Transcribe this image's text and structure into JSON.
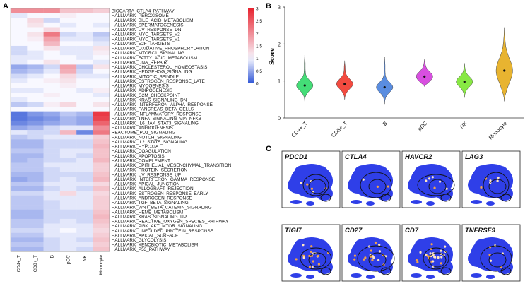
{
  "panels": {
    "a": "A",
    "b": "B",
    "c": "C"
  },
  "chart_data": [
    {
      "type": "heatmap",
      "title": "",
      "columns": [
        "CD4+_T",
        "CD8+_T",
        "B",
        "pDC",
        "NK",
        "Monocyte"
      ],
      "rows": [
        "BIOCARTA_CTLA4_PATHWAY",
        "HALLMARK_PEROXISOME",
        "HALLMARK_BILE_ACID_METABOLISM",
        "HALLMARK_SPERMATOGENESIS",
        "HALLMARK_UV_RESPONSE_DN",
        "HALLMARK_MYC_TARGETS_V2",
        "HALLMARK_MYC_TARGETS_V1",
        "HALLMARK_E2F_TARGETS",
        "HALLMARK_OXIDATIVE_PHOSPHORYLATION",
        "HALLMARK_MTORC1_SIGNALING",
        "HALLMARK_FATTY_ACID_METABOLISM",
        "HALLMARK_DNA_REPAIR",
        "HALLMARK_CHOLESTEROL_HOMEOSTASIS",
        "HALLMARK_HEDGEHOG_SIGNALING",
        "HALLMARK_MITOTIC_SPINDLE",
        "HALLMARK_ESTROGEN_RESPONSE_LATE",
        "HALLMARK_MYOGENESIS",
        "HALLMARK_ADIPOGENESIS",
        "HALLMARK_G2M_CHECKPOINT",
        "HALLMARK_KRAS_SIGNALING_DN",
        "HALLMARK_INTERFERON_ALPHA_RESPONSE",
        "HALLMARK_PANCREAS_BETA_CELLS",
        "HALLMARK_INFLAMMATORY_RESPONSE",
        "HALLMARK_TNFA_SIGNALING_VIA_NFKB",
        "HALLMARK_IL6_JAK_STAT3_SIGNALING",
        "HALLMARK_ANGIOGENESIS",
        "REACTOME_PD1_SIGNALING",
        "HALLMARK_NOTCH_SIGNALING",
        "HALLMARK_IL2_STAT5_SIGNALING",
        "HALLMARK_HYPOXIA",
        "HALLMARK_COAGULATION",
        "HALLMARK_APOPTOSIS",
        "HALLMARK_COMPLEMENT",
        "HALLMARK_EPITHELIAL_MESENCHYMAL_TRANSITION",
        "HALLMARK_PROTEIN_SECRETION",
        "HALLMARK_UV_RESPONSE_UP",
        "HALLMARK_INTERFERON_GAMMA_RESPONSE",
        "HALLMARK_APICAL_JUNCTION",
        "HALLMARK_ALLOGRAFT_REJECTION",
        "HALLMARK_ESTROGEN_RESPONSE_EARLY",
        "HALLMARK_ANDROGEN_RESPONSE",
        "HALLMARK_TGF_BETA_SIGNALING",
        "HALLMARK_WNT_BETA_CATENIN_SIGNALING",
        "HALLMARK_HEME_METABOLISM",
        "HALLMARK_KRAS_SIGNALING_UP",
        "HALLMARK_REACTIVE_OXYGEN_SPECIES_PATHWAY",
        "HALLMARK_PI3K_AKT_MTOR_SIGNALING",
        "HALLMARK_UNFOLDED_PROTEIN_RESPONSE",
        "HALLMARK_APICAL_SURFACE",
        "HALLMARK_GLYCOLYSIS",
        "HALLMARK_XENOBIOTIC_METABOLISM",
        "HALLMARK_P53_PATHWAY"
      ],
      "values": [
        [
          2.0,
          2.0,
          2.0,
          1.5,
          1.5,
          1.4
        ],
        [
          0.9,
          1.0,
          1.0,
          1.1,
          1.0,
          1.0
        ],
        [
          1.0,
          1.3,
          0.8,
          1.0,
          1.0,
          1.0
        ],
        [
          1.0,
          1.2,
          1.0,
          0.9,
          1.0,
          0.9
        ],
        [
          1.0,
          1.0,
          1.3,
          1.0,
          1.0,
          1.0
        ],
        [
          1.0,
          1.2,
          2.2,
          0.8,
          0.9,
          0.7
        ],
        [
          1.0,
          1.1,
          1.8,
          0.9,
          0.9,
          0.8
        ],
        [
          1.0,
          1.0,
          1.6,
          1.0,
          1.0,
          0.9
        ],
        [
          0.8,
          1.0,
          1.2,
          0.9,
          0.9,
          1.2
        ],
        [
          0.8,
          0.9,
          1.0,
          0.9,
          0.9,
          1.1
        ],
        [
          0.9,
          0.9,
          1.0,
          1.0,
          0.9,
          1.0
        ],
        [
          0.9,
          1.0,
          1.2,
          1.0,
          1.0,
          0.9
        ],
        [
          0.5,
          0.6,
          0.8,
          1.8,
          0.7,
          1.2
        ],
        [
          0.6,
          0.7,
          0.9,
          1.7,
          0.8,
          1.0
        ],
        [
          0.8,
          0.9,
          1.0,
          1.3,
          0.9,
          0.9
        ],
        [
          0.9,
          1.0,
          1.1,
          1.2,
          1.0,
          1.0
        ],
        [
          1.0,
          1.0,
          1.0,
          1.1,
          1.0,
          1.0
        ],
        [
          0.9,
          0.9,
          1.0,
          1.0,
          0.9,
          1.1
        ],
        [
          1.0,
          1.0,
          1.1,
          1.0,
          1.0,
          0.9
        ],
        [
          0.9,
          1.0,
          1.0,
          1.0,
          1.0,
          1.0
        ],
        [
          0.7,
          0.8,
          1.1,
          1.3,
          1.0,
          1.2
        ],
        [
          1.0,
          1.0,
          1.0,
          1.0,
          1.0,
          1.0
        ],
        [
          0.2,
          0.4,
          0.5,
          0.7,
          0.6,
          2.8
        ],
        [
          0.2,
          0.3,
          0.4,
          0.6,
          0.5,
          2.7
        ],
        [
          0.3,
          0.4,
          0.5,
          0.6,
          0.5,
          2.4
        ],
        [
          0.5,
          0.6,
          0.8,
          0.9,
          0.9,
          2.0
        ],
        [
          0.9,
          0.8,
          0.8,
          1.6,
          0.3,
          2.2
        ],
        [
          0.7,
          0.8,
          0.9,
          0.9,
          0.9,
          1.4
        ],
        [
          0.6,
          0.6,
          0.8,
          0.8,
          0.8,
          1.5
        ],
        [
          0.6,
          0.6,
          0.8,
          0.8,
          0.8,
          1.6
        ],
        [
          0.7,
          0.7,
          0.8,
          0.9,
          0.9,
          1.5
        ],
        [
          0.6,
          0.6,
          0.8,
          0.9,
          0.8,
          1.5
        ],
        [
          0.6,
          0.7,
          0.8,
          0.8,
          0.9,
          1.6
        ],
        [
          0.7,
          0.7,
          0.9,
          0.9,
          0.9,
          1.4
        ],
        [
          0.7,
          0.7,
          0.8,
          0.9,
          0.9,
          1.4
        ],
        [
          0.6,
          0.6,
          0.8,
          0.8,
          0.8,
          1.5
        ],
        [
          0.5,
          0.6,
          0.8,
          0.9,
          0.8,
          1.6
        ],
        [
          0.7,
          0.7,
          0.9,
          0.9,
          0.9,
          1.3
        ],
        [
          0.6,
          0.6,
          0.8,
          0.9,
          0.8,
          1.5
        ],
        [
          0.8,
          0.8,
          0.9,
          1.3,
          0.9,
          1.3
        ],
        [
          0.7,
          0.7,
          0.9,
          0.9,
          0.9,
          1.4
        ],
        [
          0.7,
          0.7,
          0.8,
          0.9,
          0.9,
          1.4
        ],
        [
          0.7,
          0.7,
          0.8,
          0.9,
          0.9,
          1.4
        ],
        [
          0.6,
          0.6,
          0.8,
          0.8,
          0.8,
          1.5
        ],
        [
          0.6,
          0.6,
          0.8,
          0.8,
          0.8,
          1.6
        ],
        [
          0.7,
          0.7,
          0.8,
          0.9,
          0.8,
          1.5
        ],
        [
          0.7,
          0.7,
          0.9,
          0.9,
          0.9,
          1.4
        ],
        [
          0.8,
          0.8,
          0.9,
          1.0,
          0.9,
          1.3
        ],
        [
          0.7,
          0.7,
          0.9,
          0.9,
          0.9,
          1.4
        ],
        [
          0.6,
          0.6,
          0.8,
          0.9,
          0.8,
          1.5
        ],
        [
          0.7,
          0.7,
          0.8,
          0.9,
          0.9,
          1.4
        ],
        [
          0.6,
          0.6,
          0.8,
          0.9,
          0.8,
          1.5
        ]
      ],
      "colorbar_ticks": [
        0,
        0.5,
        1,
        1.5,
        2,
        2.5,
        3
      ],
      "colorbar_range": [
        0,
        3
      ]
    },
    {
      "type": "violin",
      "title": "",
      "ylabel": "Score",
      "ylim": [
        0,
        3
      ],
      "yticks": [
        0,
        1,
        2,
        3
      ],
      "categories": [
        "CD4+_T",
        "CD8+_T",
        "B",
        "pDC",
        "NK",
        "Monocyte"
      ],
      "colors": [
        "#44dd77",
        "#f24b40",
        "#5a8de0",
        "#d84fe0",
        "#88e844",
        "#e8b430"
      ],
      "medians": [
        0.88,
        0.92,
        0.83,
        1.12,
        0.98,
        1.28
      ],
      "min": [
        0.45,
        0.5,
        0.38,
        0.85,
        0.55,
        0.45
      ],
      "max": [
        1.7,
        1.55,
        1.65,
        1.58,
        1.48,
        2.45
      ]
    }
  ],
  "feature_plots": [
    "PDCD1",
    "CTLA4",
    "HAVCR2",
    "LAG3",
    "TIGIT",
    "CD27",
    "CD7",
    "TNFRSF9"
  ]
}
